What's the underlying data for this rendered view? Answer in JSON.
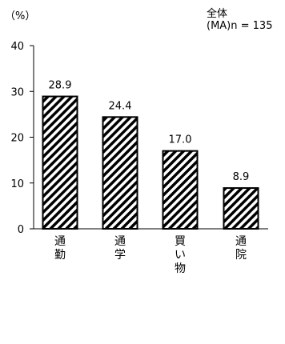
{
  "chart_data": {
    "type": "bar",
    "unit_label": "（%）",
    "note_title": "全体",
    "note_sub": "(MA)n = 135",
    "categories": [
      "通勤",
      "通学",
      "買い物",
      "通院"
    ],
    "values": [
      28.9,
      24.4,
      17.0,
      8.9
    ],
    "value_labels": [
      "28.9",
      "24.4",
      "17.0",
      "8.9"
    ],
    "ylim": [
      0,
      40
    ],
    "yticks": [
      0,
      10,
      20,
      30,
      40
    ],
    "bar_fill": "diagonal-hatch",
    "colors": {
      "bar_stroke": "#000000",
      "hatch": "#000000",
      "background": "#ffffff"
    }
  }
}
